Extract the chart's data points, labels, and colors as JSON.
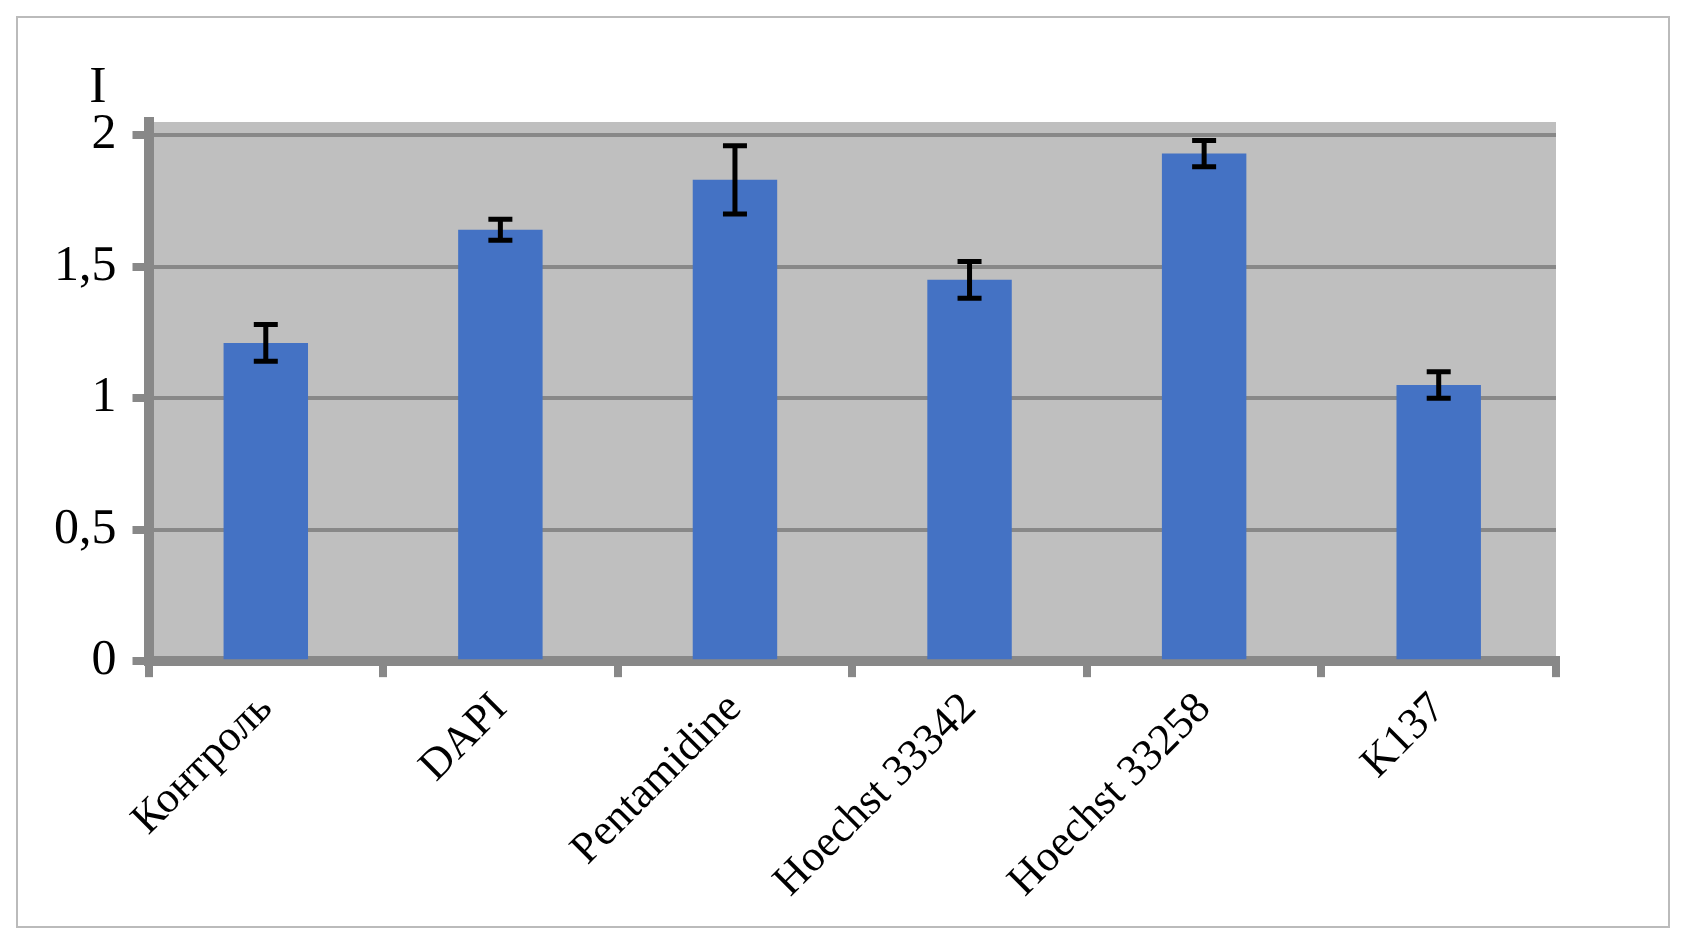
{
  "chart_data": {
    "type": "bar",
    "ylabel": "I",
    "categories": [
      "Контроль",
      "DAPI",
      "Pentamidine",
      "Hoechst 33342",
      "Hoechst 33258",
      "K137"
    ],
    "values": [
      1.21,
      1.64,
      1.83,
      1.45,
      1.93,
      1.05
    ],
    "errors": [
      0.07,
      0.04,
      0.13,
      0.07,
      0.05,
      0.05
    ],
    "color": "#4472c4",
    "ylim": [
      0,
      2.05
    ],
    "yticks": [
      0,
      {
        "value": 0.5,
        "label": "0,5"
      },
      1,
      {
        "value": 1.5,
        "label": "1,5"
      },
      2
    ],
    "grid": "y",
    "legend": false
  }
}
